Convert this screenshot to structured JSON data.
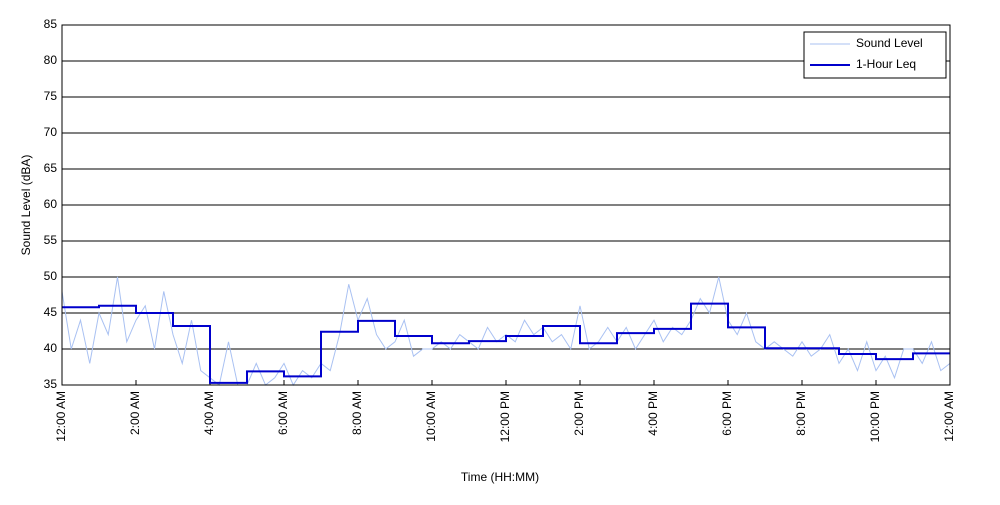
{
  "chart_data": {
    "type": "line",
    "xlabel": "Time (HH:MM)",
    "ylabel": "Sound Level (dBA)",
    "xlim": [
      0,
      24
    ],
    "xticks": [
      {
        "value": 0,
        "label": "12:00 AM"
      },
      {
        "value": 2,
        "label": "2:00 AM"
      },
      {
        "value": 4,
        "label": "4:00 AM"
      },
      {
        "value": 6,
        "label": "6:00 AM"
      },
      {
        "value": 8,
        "label": "8:00 AM"
      },
      {
        "value": 10,
        "label": "10:00 AM"
      },
      {
        "value": 12,
        "label": "12:00 PM"
      },
      {
        "value": 14,
        "label": "2:00 PM"
      },
      {
        "value": 16,
        "label": "4:00 PM"
      },
      {
        "value": 18,
        "label": "6:00 PM"
      },
      {
        "value": 20,
        "label": "8:00 PM"
      },
      {
        "value": 22,
        "label": "10:00 PM"
      },
      {
        "value": 24,
        "label": "12:00 AM"
      }
    ],
    "ylim": [
      35,
      85
    ],
    "yticks": [
      35,
      40,
      45,
      50,
      55,
      60,
      65,
      70,
      75,
      80,
      85
    ],
    "grid": true,
    "legend": "upper right",
    "series": [
      {
        "name": "Sound Level",
        "color": "#a9c1f2",
        "step": false,
        "x": [
          0,
          0.25,
          0.5,
          0.75,
          1,
          1.25,
          1.5,
          1.75,
          2,
          2.25,
          2.5,
          2.75,
          3,
          3.25,
          3.5,
          3.75,
          4,
          4.25,
          4.5,
          4.75,
          5,
          5.25,
          5.5,
          5.75,
          6,
          6.25,
          6.5,
          6.75,
          7,
          7.25,
          7.5,
          7.75,
          8,
          8.25,
          8.5,
          8.75,
          9,
          9.25,
          9.5,
          9.75,
          10,
          10.25,
          10.5,
          10.75,
          11,
          11.25,
          11.5,
          11.75,
          12,
          12.25,
          12.5,
          12.75,
          13,
          13.25,
          13.5,
          13.75,
          14,
          14.25,
          14.5,
          14.75,
          15,
          15.25,
          15.5,
          15.75,
          16,
          16.25,
          16.5,
          16.75,
          17,
          17.25,
          17.5,
          17.75,
          18,
          18.25,
          18.5,
          18.75,
          19,
          19.25,
          19.5,
          19.75,
          20,
          20.25,
          20.5,
          20.75,
          21,
          21.25,
          21.5,
          21.75,
          22,
          22.25,
          22.5,
          22.75,
          23,
          23.25,
          23.5,
          23.75,
          24
        ],
        "values": [
          48,
          40,
          44,
          38,
          45,
          42,
          50,
          41,
          44,
          46,
          40,
          48,
          42,
          38,
          44,
          37,
          36,
          35,
          41,
          35,
          35,
          38,
          35,
          36,
          38,
          35,
          37,
          36,
          38,
          37,
          42,
          49,
          44,
          47,
          42,
          40,
          41,
          44,
          39,
          40,
          40,
          41,
          40,
          42,
          41,
          40,
          43,
          41,
          42,
          41,
          44,
          42,
          43,
          41,
          42,
          40,
          46,
          40,
          41,
          43,
          41,
          43,
          40,
          42,
          44,
          41,
          43,
          42,
          44,
          47,
          45,
          50,
          44,
          42,
          45,
          41,
          40,
          41,
          40,
          39,
          41,
          39,
          40,
          42,
          38,
          40,
          37,
          41,
          37,
          39,
          36,
          40,
          40,
          38,
          41,
          37,
          38
        ]
      },
      {
        "name": "1-Hour Leq",
        "color": "#0000cc",
        "step": true,
        "x": [
          0,
          1,
          2,
          3,
          4,
          5,
          6,
          7,
          8,
          9,
          10,
          11,
          12,
          13,
          14,
          15,
          16,
          17,
          18,
          19,
          20,
          21,
          22,
          23
        ],
        "values": [
          45.8,
          46.0,
          45.0,
          43.2,
          35.3,
          36.9,
          36.2,
          42.4,
          43.9,
          41.8,
          40.8,
          41.1,
          41.8,
          43.2,
          40.8,
          42.2,
          42.8,
          46.3,
          43.0,
          40.1,
          40.1,
          39.3,
          38.6,
          39.4
        ]
      }
    ]
  }
}
